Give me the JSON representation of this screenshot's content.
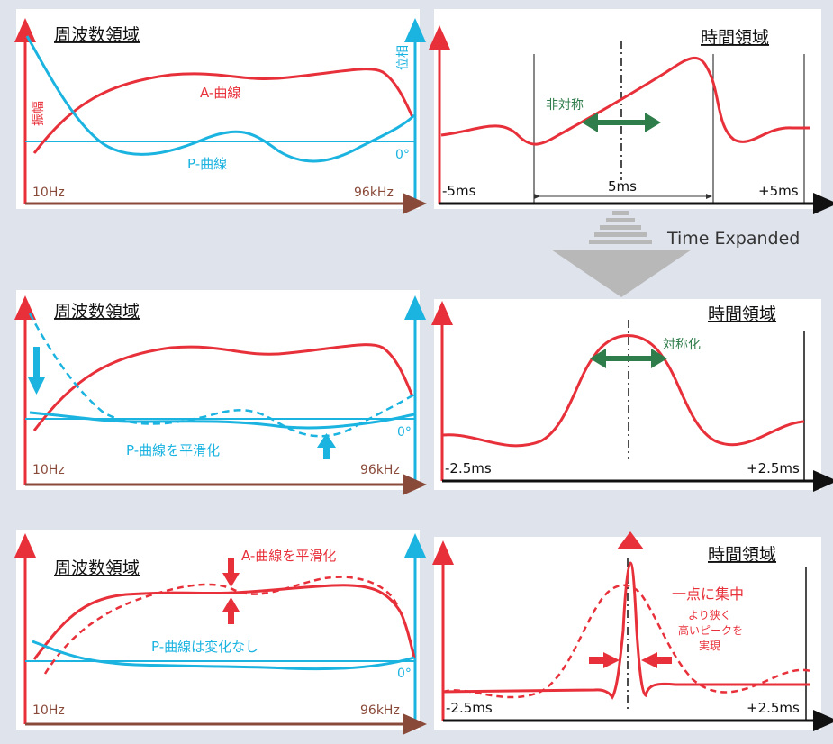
{
  "colors": {
    "amplitude": "#e8303a",
    "phase": "#1bb3e0",
    "time_axis": "#111111",
    "brown_axis": "#8a4a3a",
    "green": "#2f7d4a",
    "arrow_gray": "#b8b8b8",
    "panel_bg": "#ffffff",
    "page_bg": "#dfe3ec"
  },
  "rows": [
    {
      "freq": {
        "title": "周波数領域",
        "amp_label": "振幅",
        "phase_label": "位相",
        "a_curve_label": "A-曲線",
        "p_curve_label": "P-曲線",
        "zero_deg": "0°",
        "f_start": "10Hz",
        "f_end": "96kHz"
      },
      "time": {
        "title": "時間領域",
        "note": "非対称",
        "t_start": "-5ms",
        "t_mid": "5ms",
        "t_end": "+5ms"
      }
    },
    {
      "freq": {
        "title": "周波数領域",
        "p_curve_label": "P-曲線を平滑化",
        "zero_deg": "0°",
        "f_start": "10Hz",
        "f_end": "96kHz"
      },
      "time": {
        "title": "時間領域",
        "note": "対称化",
        "t_start": "-2.5ms",
        "t_end": "+2.5ms"
      }
    },
    {
      "freq": {
        "title": "周波数領域",
        "a_curve_label": "A-曲線を平滑化",
        "p_curve_label": "P-曲線は変化なし",
        "zero_deg": "0°",
        "f_start": "10Hz",
        "f_end": "96kHz"
      },
      "time": {
        "title": "時間領域",
        "note_main": "一点に集中",
        "note_sub1": "より狭く",
        "note_sub2": "高いピークを",
        "note_sub3": "実現",
        "t_start": "-2.5ms",
        "t_end": "+2.5ms"
      }
    }
  ],
  "transition_label": "Time Expanded"
}
